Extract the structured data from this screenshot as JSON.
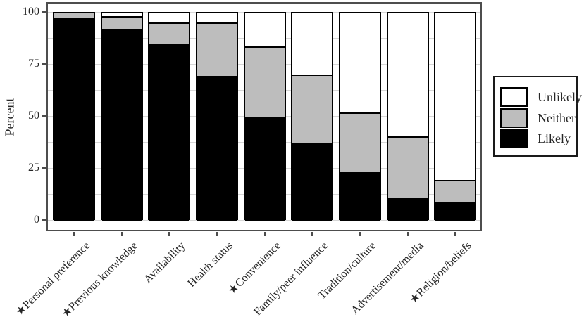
{
  "chart_data": {
    "type": "bar",
    "stacked": true,
    "title": "",
    "xlabel": "",
    "ylabel": "Percent",
    "ylim": [
      0,
      100
    ],
    "yticks": [
      0,
      25,
      50,
      75,
      100
    ],
    "grid": true,
    "grid_step": 12.5,
    "categories": [
      "★Personal preference",
      "★Previous knowledge",
      "Availability",
      "Health status",
      "★Convenience",
      "Family/peer influence",
      "Tradition/culture",
      "Advertisement/media",
      "★Religion/beliefs"
    ],
    "starred_categories": [
      "Personal preference",
      "Previous knowledge",
      "Convenience",
      "Religion/beliefs"
    ],
    "series": [
      {
        "name": "Likely",
        "color": "#000000",
        "values": [
          98,
          92.5,
          85,
          70,
          50.5,
          38,
          23.5,
          11,
          9
        ]
      },
      {
        "name": "Neither",
        "color": "#bdbdbd",
        "values": [
          2,
          6,
          10.5,
          25.5,
          33.5,
          32.5,
          29,
          30,
          11
        ]
      },
      {
        "name": "Unlikely",
        "color": "#ffffff",
        "values": [
          0,
          1.5,
          4.5,
          4.5,
          16,
          29.5,
          47.5,
          59,
          80
        ]
      }
    ],
    "legend": {
      "position": "right",
      "entries": [
        "Unlikely",
        "Neither",
        "Likely"
      ]
    },
    "colors": {
      "segment_outline": "#000000",
      "panel_border": "#4d4d4d",
      "gridline": "#d6d6d6",
      "axis_text": "#262626"
    }
  }
}
